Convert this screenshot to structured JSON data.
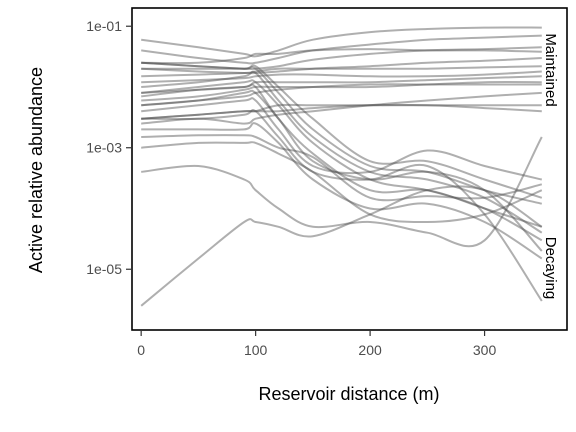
{
  "chart_data": {
    "type": "line",
    "xlabel": "Reservoir distance (m)",
    "ylabel": "Active relative abundance",
    "xlim": [
      -8,
      372
    ],
    "ylim_log10": [
      -6.0,
      -0.7
    ],
    "y_scale": "log",
    "x_ticks": [
      0,
      100,
      200,
      300
    ],
    "x_tick_labels": [
      "0",
      "100",
      "200",
      "300"
    ],
    "y_ticks": [
      0.1,
      0.001,
      1e-05
    ],
    "y_tick_labels": [
      "1e-01",
      "1e-03",
      "1e-05"
    ],
    "facet_labels": [
      "Maintained",
      "Decaying"
    ],
    "grid": false,
    "line_color": "#4d4d4d",
    "x": [
      0,
      50,
      90,
      100,
      120,
      150,
      200,
      250,
      300,
      350
    ],
    "series": [
      {
        "values": [
          0.06,
          0.045,
          0.035,
          0.032,
          0.04,
          0.06,
          0.08,
          0.09,
          0.095,
          0.095
        ]
      },
      {
        "values": [
          0.04,
          0.03,
          0.025,
          0.025,
          0.03,
          0.04,
          0.05,
          0.06,
          0.065,
          0.07
        ]
      },
      {
        "values": [
          0.025,
          0.022,
          0.02,
          0.02,
          0.022,
          0.028,
          0.035,
          0.04,
          0.042,
          0.045
        ]
      },
      {
        "values": [
          0.02,
          0.018,
          0.017,
          0.017,
          0.018,
          0.02,
          0.022,
          0.025,
          0.027,
          0.03
        ]
      },
      {
        "values": [
          0.025,
          0.025,
          0.03,
          0.035,
          0.035,
          0.04,
          0.042,
          0.04,
          0.04,
          0.038
        ]
      },
      {
        "values": [
          0.015,
          0.016,
          0.017,
          0.018,
          0.02,
          0.02,
          0.02,
          0.02,
          0.021,
          0.022
        ]
      },
      {
        "values": [
          0.012,
          0.013,
          0.014,
          0.015,
          0.016,
          0.016,
          0.015,
          0.015,
          0.016,
          0.018
        ]
      },
      {
        "values": [
          0.008,
          0.009,
          0.01,
          0.012,
          0.012,
          0.012,
          0.012,
          0.013,
          0.014,
          0.015
        ]
      },
      {
        "values": [
          0.006,
          0.007,
          0.009,
          0.01,
          0.01,
          0.01,
          0.01,
          0.011,
          0.012,
          0.012
        ]
      },
      {
        "values": [
          0.005,
          0.006,
          0.007,
          0.008,
          0.009,
          0.01,
          0.011,
          0.011,
          0.011,
          0.011
        ]
      },
      {
        "values": [
          0.003,
          0.0035,
          0.004,
          0.004,
          0.005,
          0.005,
          0.005,
          0.005,
          0.005,
          0.005
        ]
      },
      {
        "values": [
          0.003,
          0.0035,
          0.004,
          0.004,
          0.004,
          0.0045,
          0.005,
          0.005,
          0.0045,
          0.004
        ]
      },
      {
        "values": [
          0.0025,
          0.003,
          0.0025,
          0.003,
          0.0035,
          0.004,
          0.005,
          0.006,
          0.007,
          0.008
        ]
      },
      {
        "values": [
          0.02,
          0.02,
          0.02,
          0.02,
          0.008,
          0.002,
          0.0005,
          0.0004,
          0.0002,
          0.00012
        ]
      },
      {
        "values": [
          0.025,
          0.022,
          0.02,
          0.022,
          0.01,
          0.003,
          0.0006,
          0.0006,
          0.0003,
          0.00015
        ]
      },
      {
        "values": [
          0.01,
          0.012,
          0.015,
          0.017,
          0.006,
          0.0015,
          0.0004,
          0.0003,
          0.00015,
          4e-05
        ]
      },
      {
        "values": [
          0.008,
          0.01,
          0.012,
          0.012,
          0.005,
          0.0012,
          0.0003,
          0.0002,
          0.0001,
          3e-05
        ]
      },
      {
        "values": [
          0.007,
          0.009,
          0.01,
          0.01,
          0.003,
          0.0008,
          0.0002,
          0.0002,
          0.0001,
          5e-05
        ]
      },
      {
        "values": [
          0.005,
          0.006,
          0.008,
          0.008,
          0.003,
          0.0006,
          0.0003,
          0.0004,
          0.0002,
          2e-05
        ]
      },
      {
        "values": [
          0.004,
          0.005,
          0.006,
          0.006,
          0.002,
          0.0005,
          0.0004,
          0.0009,
          0.0005,
          0.0003
        ]
      },
      {
        "values": [
          0.003,
          0.003,
          0.0035,
          0.004,
          0.0015,
          0.0004,
          0.0003,
          0.0005,
          8e-05,
          3e-06
        ]
      },
      {
        "values": [
          0.002,
          0.002,
          0.002,
          0.0025,
          0.0012,
          0.0003,
          0.0001,
          0.00012,
          6e-05,
          1.5e-05
        ]
      },
      {
        "values": [
          0.0015,
          0.0016,
          0.0016,
          0.0015,
          0.001,
          0.0007,
          0.00015,
          0.00016,
          0.00015,
          0.00025
        ]
      },
      {
        "values": [
          0.001,
          0.0012,
          0.0012,
          0.0012,
          0.0008,
          0.0004,
          8e-05,
          6e-05,
          8e-05,
          0.0002
        ]
      },
      {
        "values": [
          0.0004,
          0.0005,
          0.0003,
          0.0002,
          0.0001,
          5e-05,
          6e-05,
          4e-05,
          3e-05,
          0.0015
        ]
      },
      {
        "values": [
          2.5e-06,
          1.5e-05,
          6e-05,
          6e-05,
          5e-05,
          3.5e-05,
          8e-05,
          0.0002,
          0.0002,
          5e-05
        ]
      }
    ]
  }
}
